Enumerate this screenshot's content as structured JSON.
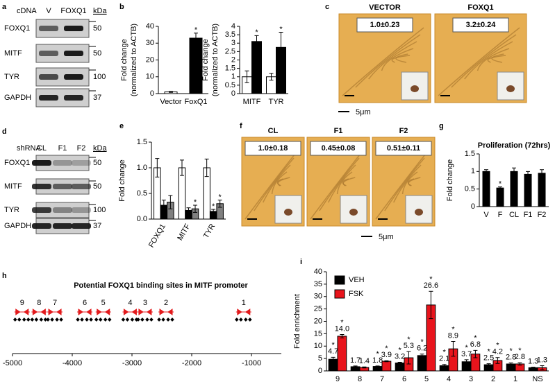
{
  "panel_letters": [
    "a",
    "b",
    "c",
    "d",
    "e",
    "f",
    "g",
    "h",
    "i"
  ],
  "blot_a": {
    "header": "cDNA",
    "lanes": [
      "V",
      "FOXQ1"
    ],
    "unit": "kDa",
    "rows": [
      {
        "name": "FOXQ1",
        "kda": "50"
      },
      {
        "name": "MITF",
        "kda": "50"
      },
      {
        "name": "TYR",
        "kda": "100"
      },
      {
        "name": "GAPDH",
        "kda": "37"
      }
    ]
  },
  "blot_d": {
    "header": "shRNA",
    "lanes": [
      "CL",
      "F1",
      "F2"
    ],
    "unit": "kDa",
    "rows": [
      {
        "name": "FOXQ1",
        "kda": "50"
      },
      {
        "name": "MITF",
        "kda": "50"
      },
      {
        "name": "TYR",
        "kda": "100"
      },
      {
        "name": "GAPDH",
        "kda": "37"
      }
    ]
  },
  "images_c": {
    "panels": [
      {
        "title": "VECTOR",
        "value": "1.0±0.23"
      },
      {
        "title": "FOXQ1",
        "value": "3.2±0.24"
      }
    ],
    "scale": "5μm"
  },
  "images_f": {
    "panels": [
      {
        "title": "CL",
        "value": "1.0±0.18"
      },
      {
        "title": "F1",
        "value": "0.45±0.08"
      },
      {
        "title": "F2",
        "value": "0.51±0.11"
      }
    ],
    "scale": "5μm"
  },
  "chart_data": [
    {
      "type": "bar",
      "ylabel": [
        "Fold change",
        "(normalized to ACTB)"
      ],
      "categories": [
        "Vector",
        "FoxQ1"
      ],
      "values": [
        1,
        33
      ],
      "errors": [
        0.3,
        3
      ],
      "colors": [
        "#ffffff",
        "#000000"
      ],
      "markers": [
        null,
        "*"
      ],
      "ylim": [
        0,
        40
      ],
      "yticks": [
        0,
        10,
        20,
        30,
        40
      ]
    },
    {
      "type": "bar",
      "ylabel": [
        "Fold change",
        "(normalized to ACTB)"
      ],
      "categories": [
        "MITF",
        "TYR"
      ],
      "series": [
        {
          "color": "#ffffff",
          "values": [
            1.0,
            1.0
          ],
          "errors": [
            0.35,
            0.2
          ],
          "markers": [
            null,
            null
          ]
        },
        {
          "color": "#000000",
          "values": [
            3.1,
            2.75
          ],
          "errors": [
            0.35,
            0.9
          ],
          "markers": [
            "*",
            "*"
          ]
        }
      ],
      "ylim": [
        0,
        4
      ],
      "yticks": [
        0,
        0.5,
        1,
        1.5,
        2,
        2.5,
        3,
        3.5,
        4
      ]
    },
    {
      "type": "bar",
      "ylabel": [
        "Fold change"
      ],
      "categories": [
        "FOXQ1",
        "MITF",
        "TYR"
      ],
      "series": [
        {
          "color": "#ffffff",
          "values": [
            1.0,
            1.0,
            1.0
          ],
          "errors": [
            0.18,
            0.15,
            0.17
          ],
          "markers": [
            null,
            null,
            null
          ]
        },
        {
          "color": "#000000",
          "values": [
            0.27,
            0.17,
            0.15
          ],
          "errors": [
            0.1,
            0.05,
            0.04
          ],
          "markers": [
            null,
            null,
            "*"
          ]
        },
        {
          "color": "#808080",
          "values": [
            0.33,
            0.2,
            0.3
          ],
          "errors": [
            0.13,
            0.07,
            0.07
          ],
          "markers": [
            null,
            "*",
            "*"
          ]
        }
      ],
      "ylim": [
        0,
        1.5
      ],
      "yticks": [
        {
          "value": 0,
          "label": "0.0"
        },
        0.5,
        {
          "value": 1,
          "label": "1.0"
        },
        1.5
      ]
    },
    {
      "type": "bar",
      "title": "Proliferation (72hrs)",
      "ylabel": [
        "Fold change"
      ],
      "categories": [
        "V",
        "F",
        "CL",
        "F1",
        "F2"
      ],
      "values": [
        1.0,
        0.53,
        1.0,
        0.92,
        0.95
      ],
      "errors": [
        0.05,
        0.03,
        0.1,
        0.08,
        0.1
      ],
      "colors": [
        "#000000",
        "#000000",
        "#000000",
        "#000000",
        "#000000"
      ],
      "markers": [
        null,
        "*",
        null,
        null,
        null
      ],
      "ylim": [
        0,
        1.5
      ],
      "yticks": [
        0,
        0.5,
        1,
        1.5
      ]
    },
    {
      "type": "sites",
      "title": "Potential FOXQ1 binding sites in MITF promoter",
      "sites": [
        {
          "label": "9",
          "x": -4840
        },
        {
          "label": "8",
          "x": -4554
        },
        {
          "label": "7",
          "x": -4290
        },
        {
          "label": "6",
          "x": -3790
        },
        {
          "label": "5",
          "x": -3480
        },
        {
          "label": "4",
          "x": -3030
        },
        {
          "label": "3",
          "x": -2780
        },
        {
          "label": "2",
          "x": -2430
        },
        {
          "label": "1",
          "x": -1130
        }
      ],
      "color": "#e31a1c",
      "xlim": [
        -5000,
        -500
      ],
      "xticks": [
        -5000,
        -4000,
        -3000,
        -2000,
        -1000
      ]
    },
    {
      "type": "bar",
      "ylabel": [
        "Fold  enrichment"
      ],
      "legend": "top-left",
      "categories": [
        "9",
        "8",
        "7",
        "6",
        "5",
        "4",
        "3",
        "2",
        "1",
        "NS"
      ],
      "series": [
        {
          "name": "VEH",
          "color": "#000000",
          "values": [
            4.7,
            1.7,
            1.8,
            3.2,
            6.2,
            2.1,
            3.7,
            2.5,
            2.8,
            1.3
          ],
          "value_labels": [
            "4.7",
            "1.7",
            "1.8",
            "3.2",
            "6.2",
            "2.1",
            "3.7",
            "2.5",
            "2.8",
            "1.3"
          ],
          "errors": [
            0.8,
            0.3,
            0.2,
            0.3,
            0.6,
            0.5,
            0.8,
            0.4,
            0.4,
            0.2
          ],
          "markers": [
            "*",
            null,
            "*",
            "*",
            "*",
            "*",
            "*",
            "*",
            "*",
            null
          ]
        },
        {
          "name": "FSK",
          "color": "#e8141c",
          "values": [
            14.0,
            1.4,
            3.9,
            5.3,
            26.6,
            8.9,
            6.8,
            4.2,
            2.8,
            1.3
          ],
          "value_labels": [
            "14.0",
            "1.4",
            "3.9",
            "5.3",
            "26.6",
            "8.9",
            "6.8",
            "4.2",
            "2.8",
            "1.3"
          ],
          "errors": [
            0.7,
            0.2,
            0.2,
            2.5,
            5.5,
            3,
            1.5,
            1.2,
            0.5,
            0.8
          ],
          "markers": [
            "*",
            null,
            "*",
            "*",
            "*",
            "*",
            "*",
            "*",
            "*",
            null
          ]
        }
      ],
      "ylim": [
        0,
        40
      ],
      "yticks": [
        0,
        5,
        10,
        15,
        20,
        25,
        30,
        35,
        40
      ]
    }
  ]
}
